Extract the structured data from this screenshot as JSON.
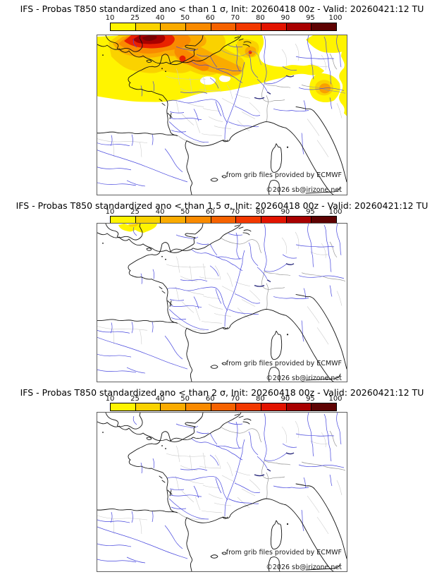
{
  "panels": [
    {
      "title": "IFS - Probas T850  standardized ano < than 1 σ, Init: 20260418 00z - Valid: 20260421:12 TU"
    },
    {
      "title": "IFS - Probas T850  standardized ano < than 1.5 σ, Init: 20260418 00z - Valid: 20260421:12 TU"
    },
    {
      "title": "IFS - Probas T850  standardized ano < than 2 σ, Init: 20260418 00z - Valid: 20260421:12 TU"
    }
  ],
  "colorbar": {
    "tick_labels": [
      "10",
      "25",
      "40",
      "50",
      "60",
      "70",
      "80",
      "90",
      "95",
      "100"
    ],
    "segment_colors": [
      "#FFF400",
      "#FAD200",
      "#FAAB00",
      "#F98A00",
      "#F66200",
      "#F23800",
      "#E21300",
      "#A80000",
      "#5E0202"
    ]
  },
  "map": {
    "attribution_line1": "from grib files provided by ECMWF",
    "attribution_line2": "©2026 sb@irizone.net",
    "river_color": "#4747DE",
    "coast_color": "#111111",
    "department_border_color": "#c9c9c9",
    "country_border_color": "#979797"
  }
}
